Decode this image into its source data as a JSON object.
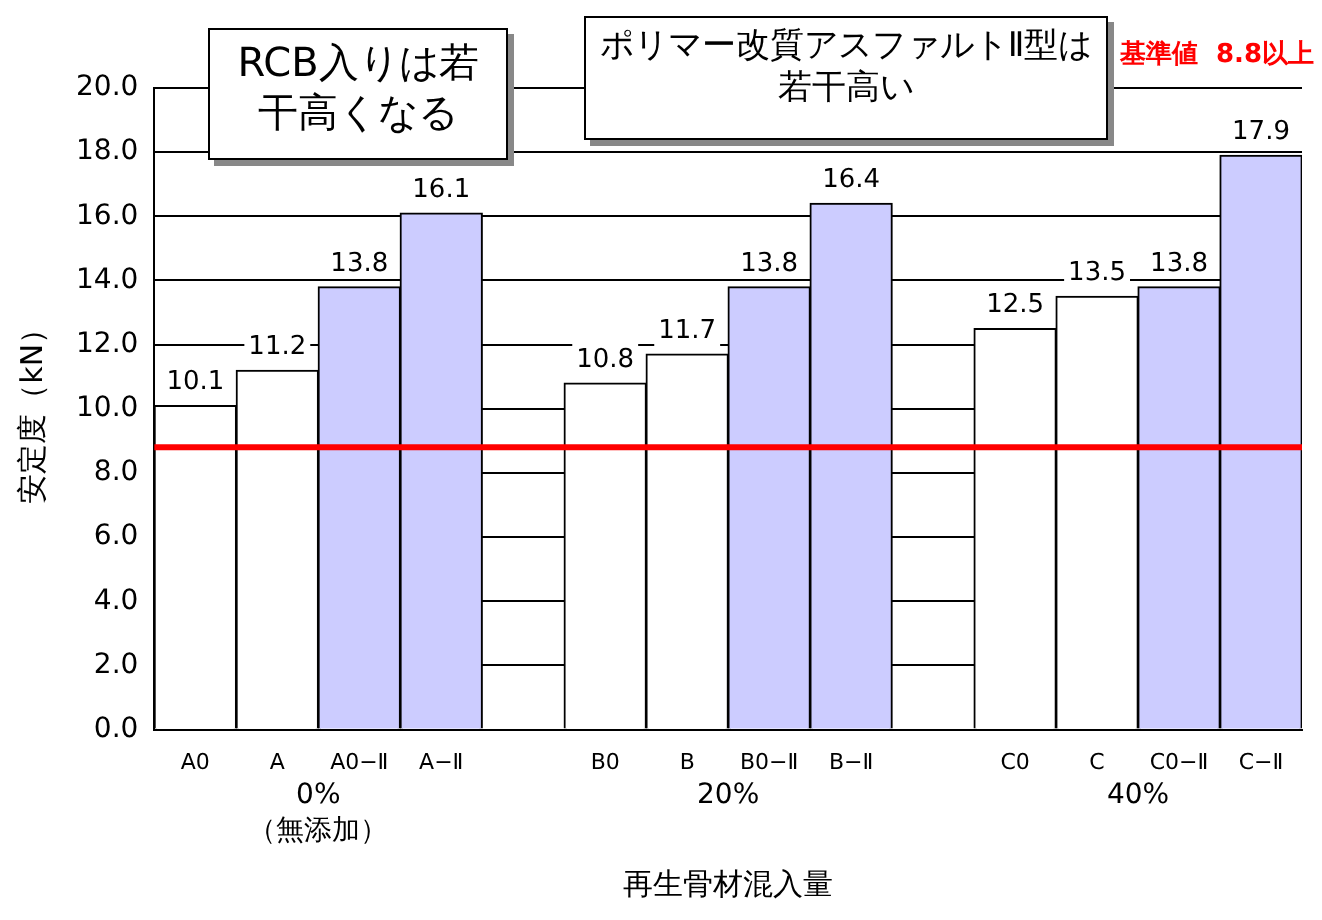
{
  "chart_data": {
    "type": "bar",
    "xlabel": "再生骨材混入量",
    "ylabel": "安定度（kN）",
    "categories": [
      "A0",
      "A",
      "A0−Ⅱ",
      "A−Ⅱ",
      null,
      "B0",
      "B",
      "B0−Ⅱ",
      "B−Ⅱ",
      null,
      "C0",
      "C",
      "C0−Ⅱ",
      "C−Ⅱ"
    ],
    "values": [
      10.1,
      11.2,
      13.8,
      16.1,
      null,
      10.8,
      11.7,
      13.8,
      16.4,
      null,
      12.5,
      13.5,
      13.8,
      17.9
    ],
    "colors": [
      "#ffffff",
      "#ffffff",
      "#ccccff",
      "#ccccff",
      "#ffffff",
      "#ffffff",
      "#ffffff",
      "#ccccff",
      "#ccccff",
      "#ffffff",
      "#ffffff",
      "#ffffff",
      "#ccccff",
      "#ccccff"
    ],
    "ylim": [
      0,
      20
    ],
    "yticks": [
      {
        "value": 0,
        "label": "0.0"
      },
      {
        "value": 2,
        "label": "2.0"
      },
      {
        "value": 4,
        "label": "4.0"
      },
      {
        "value": 6,
        "label": "6.0"
      },
      {
        "value": 8,
        "label": "8.0"
      },
      {
        "value": 10,
        "label": "10.0"
      },
      {
        "value": 12,
        "label": "12.0"
      },
      {
        "value": 14,
        "label": "14.0"
      },
      {
        "value": 16,
        "label": "16.0"
      },
      {
        "value": 18,
        "label": "18.0"
      },
      {
        "value": 20,
        "label": "20.0"
      }
    ],
    "grid": "y",
    "legend": false,
    "data_labels": true,
    "ref_lines": [
      {
        "axis": "y",
        "value": 8.8,
        "label": "基準値  8.8以上",
        "color": "#ff0000"
      }
    ],
    "annotations": [
      "RCB入りは若干高くなる",
      "ポリマー改質アスファルトⅡ型は若干高い",
      "0%",
      "（無添加）",
      "20%",
      "40%"
    ]
  }
}
